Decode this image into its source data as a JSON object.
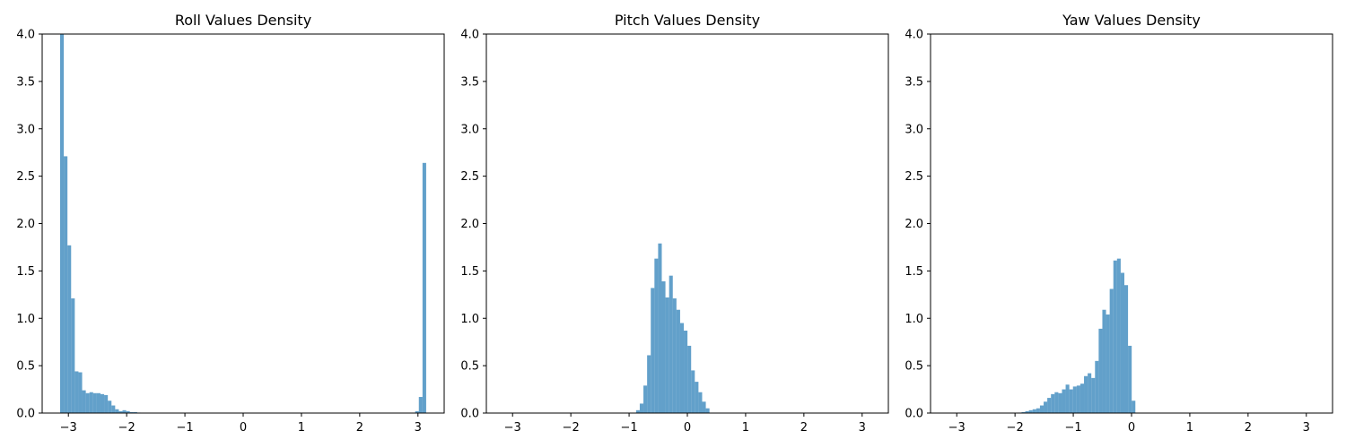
{
  "chart_data": [
    {
      "type": "bar",
      "title": "Roll Values Density",
      "xlim": [
        -3.45,
        3.45
      ],
      "ylim": [
        0,
        4.0
      ],
      "xticks": [
        "-3",
        "-2",
        "-1",
        "0",
        "1",
        "2",
        "3"
      ],
      "yticks": [
        "0.0",
        "0.5",
        "1.0",
        "1.5",
        "2.0",
        "2.5",
        "3.0",
        "3.5",
        "4.0"
      ],
      "color": "#1f77b4",
      "bin_width": 0.0628,
      "bins": [
        {
          "x": -3.142,
          "y": 4.0
        },
        {
          "x": -3.079,
          "y": 2.71
        },
        {
          "x": -3.016,
          "y": 1.77
        },
        {
          "x": -2.953,
          "y": 1.21
        },
        {
          "x": -2.89,
          "y": 0.44
        },
        {
          "x": -2.827,
          "y": 0.43
        },
        {
          "x": -2.764,
          "y": 0.24
        },
        {
          "x": -2.701,
          "y": 0.21
        },
        {
          "x": -2.638,
          "y": 0.22
        },
        {
          "x": -2.575,
          "y": 0.21
        },
        {
          "x": -2.512,
          "y": 0.21
        },
        {
          "x": -2.449,
          "y": 0.2
        },
        {
          "x": -2.386,
          "y": 0.19
        },
        {
          "x": -2.323,
          "y": 0.13
        },
        {
          "x": -2.26,
          "y": 0.08
        },
        {
          "x": -2.197,
          "y": 0.04
        },
        {
          "x": -2.134,
          "y": 0.02
        },
        {
          "x": -2.071,
          "y": 0.03
        },
        {
          "x": -2.008,
          "y": 0.02
        },
        {
          "x": -1.945,
          "y": 0.01
        },
        {
          "x": -1.882,
          "y": 0.01
        },
        {
          "x": -1.819,
          "y": 0.005
        },
        {
          "x": 2.952,
          "y": 0.02
        },
        {
          "x": 3.015,
          "y": 0.17
        },
        {
          "x": 3.078,
          "y": 2.64
        }
      ]
    },
    {
      "type": "bar",
      "title": "Pitch Values Density",
      "xlim": [
        -3.45,
        3.45
      ],
      "ylim": [
        0,
        4.0
      ],
      "xticks": [
        "-3",
        "-2",
        "-1",
        "0",
        "1",
        "2",
        "3"
      ],
      "yticks": [
        "0.0",
        "0.5",
        "1.0",
        "1.5",
        "2.0",
        "2.5",
        "3.0",
        "3.5",
        "4.0"
      ],
      "color": "#1f77b4",
      "bin_width": 0.0628,
      "bins": [
        {
          "x": -0.88,
          "y": 0.03
        },
        {
          "x": -0.817,
          "y": 0.1
        },
        {
          "x": -0.754,
          "y": 0.29
        },
        {
          "x": -0.691,
          "y": 0.61
        },
        {
          "x": -0.628,
          "y": 1.32
        },
        {
          "x": -0.565,
          "y": 1.63
        },
        {
          "x": -0.502,
          "y": 1.79
        },
        {
          "x": -0.439,
          "y": 1.39
        },
        {
          "x": -0.376,
          "y": 1.22
        },
        {
          "x": -0.313,
          "y": 1.45
        },
        {
          "x": -0.25,
          "y": 1.21
        },
        {
          "x": -0.187,
          "y": 1.09
        },
        {
          "x": -0.124,
          "y": 0.95
        },
        {
          "x": -0.061,
          "y": 0.87
        },
        {
          "x": 0.002,
          "y": 0.71
        },
        {
          "x": 0.065,
          "y": 0.45
        },
        {
          "x": 0.128,
          "y": 0.33
        },
        {
          "x": 0.191,
          "y": 0.22
        },
        {
          "x": 0.254,
          "y": 0.12
        },
        {
          "x": 0.317,
          "y": 0.05
        }
      ]
    },
    {
      "type": "bar",
      "title": "Yaw Values Density",
      "xlim": [
        -3.45,
        3.45
      ],
      "ylim": [
        0,
        4.0
      ],
      "xticks": [
        "-3",
        "-2",
        "-1",
        "0",
        "1",
        "2",
        "3"
      ],
      "yticks": [
        "0.0",
        "0.5",
        "1.0",
        "1.5",
        "2.0",
        "2.5",
        "3.0",
        "3.5",
        "4.0"
      ],
      "color": "#1f77b4",
      "bin_width": 0.0628,
      "bins": [
        {
          "x": -1.95,
          "y": 0.005
        },
        {
          "x": -1.887,
          "y": 0.01
        },
        {
          "x": -1.824,
          "y": 0.02
        },
        {
          "x": -1.761,
          "y": 0.03
        },
        {
          "x": -1.698,
          "y": 0.04
        },
        {
          "x": -1.635,
          "y": 0.05
        },
        {
          "x": -1.572,
          "y": 0.08
        },
        {
          "x": -1.509,
          "y": 0.12
        },
        {
          "x": -1.446,
          "y": 0.16
        },
        {
          "x": -1.383,
          "y": 0.2
        },
        {
          "x": -1.32,
          "y": 0.22
        },
        {
          "x": -1.257,
          "y": 0.21
        },
        {
          "x": -1.194,
          "y": 0.25
        },
        {
          "x": -1.131,
          "y": 0.3
        },
        {
          "x": -1.068,
          "y": 0.25
        },
        {
          "x": -1.005,
          "y": 0.28
        },
        {
          "x": -0.942,
          "y": 0.29
        },
        {
          "x": -0.879,
          "y": 0.31
        },
        {
          "x": -0.816,
          "y": 0.39
        },
        {
          "x": -0.753,
          "y": 0.42
        },
        {
          "x": -0.69,
          "y": 0.37
        },
        {
          "x": -0.627,
          "y": 0.55
        },
        {
          "x": -0.564,
          "y": 0.89
        },
        {
          "x": -0.501,
          "y": 1.09
        },
        {
          "x": -0.438,
          "y": 1.04
        },
        {
          "x": -0.375,
          "y": 1.31
        },
        {
          "x": -0.312,
          "y": 1.61
        },
        {
          "x": -0.249,
          "y": 1.63
        },
        {
          "x": -0.186,
          "y": 1.48
        },
        {
          "x": -0.123,
          "y": 1.35
        },
        {
          "x": -0.06,
          "y": 0.71
        },
        {
          "x": 0.003,
          "y": 0.13
        }
      ]
    }
  ]
}
